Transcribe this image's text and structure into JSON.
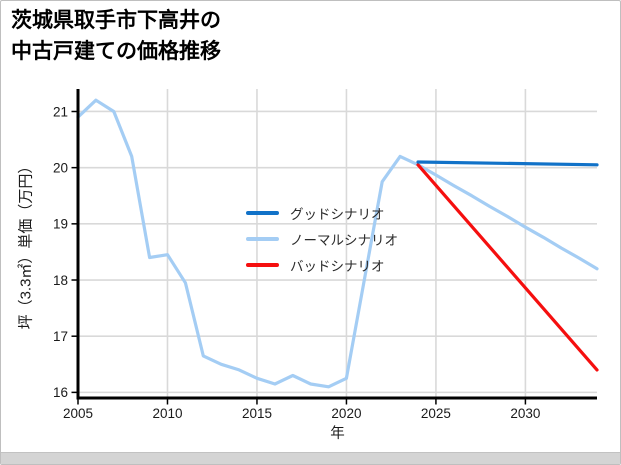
{
  "title": {
    "line1": "茨城県取手市下高井の",
    "line2": "中古戸建ての価格推移"
  },
  "chart_data": {
    "type": "line",
    "title": "茨城県取手市下高井の中古戸建ての価格推移",
    "xlabel": "年",
    "ylabel": "坪（3.3㎡）単価（万円）",
    "xlim": [
      2005,
      2034
    ],
    "ylim": [
      15.9,
      21.4
    ],
    "xticks": [
      2005,
      2010,
      2015,
      2020,
      2025,
      2030
    ],
    "yticks": [
      16,
      17,
      18,
      19,
      20,
      21
    ],
    "grid": true,
    "legend_position": "center",
    "series": [
      {
        "name": "グッドシナリオ",
        "color": "#1172c8",
        "x": [
          2024,
          2034
        ],
        "y": [
          20.1,
          20.05
        ]
      },
      {
        "name": "ノーマルシナリオ",
        "color": "#a4cdf4",
        "x": [
          2005,
          2006,
          2007,
          2008,
          2009,
          2010,
          2011,
          2012,
          2013,
          2014,
          2015,
          2016,
          2017,
          2018,
          2019,
          2020,
          2021,
          2022,
          2023,
          2024,
          2025,
          2026,
          2027,
          2028,
          2029,
          2030,
          2031,
          2032,
          2033,
          2034
        ],
        "y": [
          20.9,
          21.2,
          21.0,
          20.2,
          18.4,
          18.45,
          17.95,
          16.65,
          16.5,
          16.4,
          16.25,
          16.15,
          16.3,
          16.15,
          16.1,
          16.25,
          18.0,
          19.75,
          20.2,
          20.05,
          19.87,
          19.68,
          19.5,
          19.31,
          19.13,
          18.94,
          18.76,
          18.57,
          18.39,
          18.2
        ]
      },
      {
        "name": "バッドシナリオ",
        "color": "#f50f0f",
        "x": [
          2024,
          2034
        ],
        "y": [
          20.05,
          16.4
        ]
      }
    ]
  },
  "colors": {
    "grid": "#d9d9d9",
    "axis": "#000000",
    "tick_text": "#1a1a1a"
  }
}
